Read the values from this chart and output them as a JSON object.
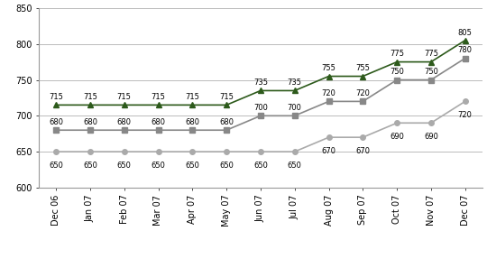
{
  "months": [
    "Dec 06",
    "Jan 07",
    "Feb 07",
    "Mar 07",
    "Apr 07",
    "May 07",
    "Jun 07",
    "Jul 07",
    "Aug 07",
    "Sep 07",
    "Oct 07",
    "Nov 07",
    "Dec 07"
  ],
  "asia": [
    650,
    650,
    650,
    650,
    650,
    650,
    650,
    650,
    670,
    670,
    690,
    690,
    720
  ],
  "europe": [
    680,
    680,
    680,
    680,
    680,
    680,
    700,
    700,
    720,
    720,
    750,
    750,
    780
  ],
  "usa": [
    715,
    715,
    715,
    715,
    715,
    715,
    735,
    735,
    755,
    755,
    775,
    775,
    805
  ],
  "asia_labels": [
    "650",
    "650",
    "650",
    "650",
    "650",
    "650",
    "650",
    "650",
    "670",
    "670",
    "690",
    "690",
    "720"
  ],
  "europe_labels": [
    "680",
    "680",
    "680",
    "680",
    "680",
    "680",
    "700",
    "700",
    "720",
    "720",
    "750",
    "750",
    "780"
  ],
  "usa_labels": [
    "715",
    "715",
    "715",
    "715",
    "715",
    "715",
    "735",
    "735",
    "755",
    "755",
    "775",
    "775",
    "805"
  ],
  "asia_color": "#aaaaaa",
  "europe_color": "#888888",
  "usa_color": "#2d5a1b",
  "ylim": [
    600,
    850
  ],
  "yticks": [
    600,
    650,
    700,
    750,
    800,
    850
  ],
  "background_color": "#ffffff",
  "grid_color": "#bbbbbb",
  "label_fontsize": 6.0,
  "legend_fontsize": 8.0,
  "tick_fontsize": 7.0,
  "lw": 1.2,
  "ms": 4
}
